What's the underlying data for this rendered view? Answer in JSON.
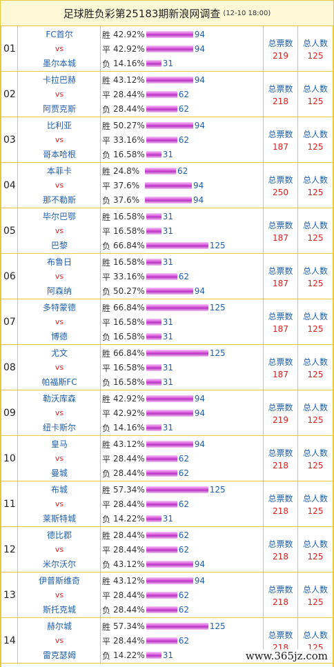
{
  "header": {
    "title": "足球胜负彩第25183期新浪网调查",
    "date": "(12-10 18:00)"
  },
  "labels": {
    "win": "胜",
    "draw": "平",
    "lose": "负",
    "vs": "vs",
    "ticket_total": "总票数",
    "people_total": "总人数"
  },
  "matches": [
    {
      "num": "01",
      "home": "FC首尔",
      "away": "墨尔本城",
      "odds": [
        {
          "pct": "42.92%",
          "count": "94"
        },
        {
          "pct": "42.92%",
          "count": "94"
        },
        {
          "pct": "14.16%",
          "count": "31"
        }
      ],
      "tickets": "219",
      "people": "125"
    },
    {
      "num": "02",
      "home": "卡拉巴赫",
      "away": "阿贾克斯",
      "odds": [
        {
          "pct": "43.12%",
          "count": "94"
        },
        {
          "pct": "28.44%",
          "count": "62"
        },
        {
          "pct": "28.44%",
          "count": "62"
        }
      ],
      "tickets": "218",
      "people": "125"
    },
    {
      "num": "03",
      "home": "比利亚",
      "away": "哥本哈根",
      "odds": [
        {
          "pct": "50.27%",
          "count": "94"
        },
        {
          "pct": "33.16%",
          "count": "62"
        },
        {
          "pct": "16.58%",
          "count": "31"
        }
      ],
      "tickets": "187",
      "people": "125"
    },
    {
      "num": "04",
      "home": "本菲卡",
      "away": "那不勒斯",
      "odds": [
        {
          "pct": "24.8%",
          "count": "62"
        },
        {
          "pct": "37.6%",
          "count": "94"
        },
        {
          "pct": "37.6%",
          "count": "94"
        }
      ],
      "tickets": "250",
      "people": "125"
    },
    {
      "num": "05",
      "home": "毕尔巴鄂",
      "away": "巴黎",
      "odds": [
        {
          "pct": "16.58%",
          "count": "31"
        },
        {
          "pct": "16.58%",
          "count": "31"
        },
        {
          "pct": "66.84%",
          "count": "125"
        }
      ],
      "tickets": "187",
      "people": "125"
    },
    {
      "num": "06",
      "home": "布鲁日",
      "away": "阿森纳",
      "odds": [
        {
          "pct": "16.58%",
          "count": "31"
        },
        {
          "pct": "33.16%",
          "count": "62"
        },
        {
          "pct": "50.27%",
          "count": "94"
        }
      ],
      "tickets": "187",
      "people": "125"
    },
    {
      "num": "07",
      "home": "多特蒙德",
      "away": "博德",
      "odds": [
        {
          "pct": "66.84%",
          "count": "125"
        },
        {
          "pct": "16.58%",
          "count": "31"
        },
        {
          "pct": "16.58%",
          "count": "31"
        }
      ],
      "tickets": "187",
      "people": "125"
    },
    {
      "num": "08",
      "home": "尤文",
      "away": "帕福斯FC",
      "odds": [
        {
          "pct": "66.84%",
          "count": "125"
        },
        {
          "pct": "16.58%",
          "count": "31"
        },
        {
          "pct": "16.58%",
          "count": "31"
        }
      ],
      "tickets": "187",
      "people": "125"
    },
    {
      "num": "09",
      "home": "勒沃库森",
      "away": "纽卡斯尔",
      "odds": [
        {
          "pct": "42.92%",
          "count": "94"
        },
        {
          "pct": "42.92%",
          "count": "94"
        },
        {
          "pct": "14.16%",
          "count": "31"
        }
      ],
      "tickets": "219",
      "people": "125"
    },
    {
      "num": "10",
      "home": "皇马",
      "away": "曼城",
      "odds": [
        {
          "pct": "43.12%",
          "count": "94"
        },
        {
          "pct": "28.44%",
          "count": "62"
        },
        {
          "pct": "28.44%",
          "count": "62"
        }
      ],
      "tickets": "218",
      "people": "125"
    },
    {
      "num": "11",
      "home": "布城",
      "away": "莱斯特城",
      "odds": [
        {
          "pct": "57.34%",
          "count": "125"
        },
        {
          "pct": "28.44%",
          "count": "62"
        },
        {
          "pct": "14.22%",
          "count": "31"
        }
      ],
      "tickets": "218",
      "people": "125"
    },
    {
      "num": "12",
      "home": "德比郡",
      "away": "米尔沃尔",
      "odds": [
        {
          "pct": "28.44%",
          "count": "62"
        },
        {
          "pct": "28.44%",
          "count": "62"
        },
        {
          "pct": "43.12%",
          "count": "94"
        }
      ],
      "tickets": "218",
      "people": "125"
    },
    {
      "num": "13",
      "home": "伊普斯维奇",
      "away": "斯托克城",
      "odds": [
        {
          "pct": "43.12%",
          "count": "94"
        },
        {
          "pct": "28.44%",
          "count": "62"
        },
        {
          "pct": "28.44%",
          "count": "62"
        }
      ],
      "tickets": "218",
      "people": "125"
    },
    {
      "num": "14",
      "home": "赫尔城",
      "away": "雷克瑟姆",
      "odds": [
        {
          "pct": "57.34%",
          "count": "125"
        },
        {
          "pct": "28.44%",
          "count": "62"
        },
        {
          "pct": "14.22%",
          "count": "31"
        }
      ],
      "tickets": "218",
      "people": "125"
    }
  ],
  "watermark": "www.365jz.com",
  "colors": {
    "border": "#e6c93a",
    "header_bg": "#fff8d7",
    "team_blue": "#1f5fae",
    "value_red": "#d21f1f",
    "bar": "#c23bcc"
  }
}
